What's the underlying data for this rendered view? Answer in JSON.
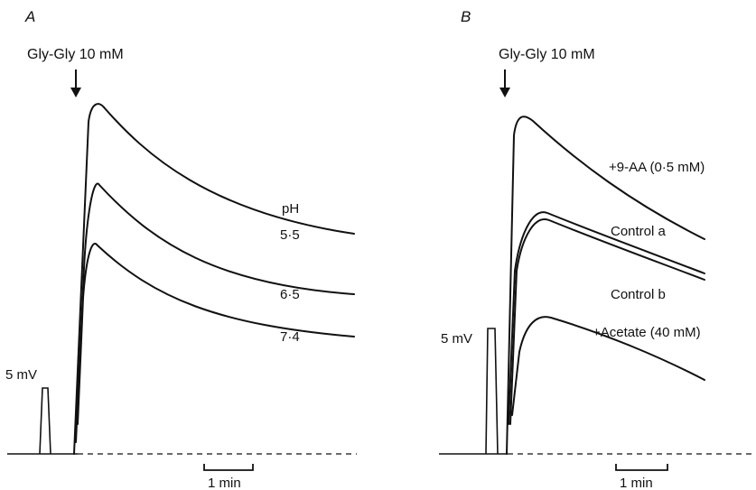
{
  "panel_a": {
    "letter": "A",
    "stimulus": "Gly-Gly 10 mM",
    "calibration_voltage": "5 mV",
    "calibration_time": "1 min",
    "legend_heading": "pH",
    "trace_labels": [
      "5·5",
      "6·5",
      "7·4"
    ]
  },
  "panel_b": {
    "letter": "B",
    "stimulus": "Gly-Gly 10 mM",
    "calibration_voltage": "5 mV",
    "calibration_time": "1 min",
    "trace_labels": [
      "+9-AA (0·5 mM)",
      "Control a",
      "Control b",
      "+Acetate (40 mM)"
    ]
  }
}
